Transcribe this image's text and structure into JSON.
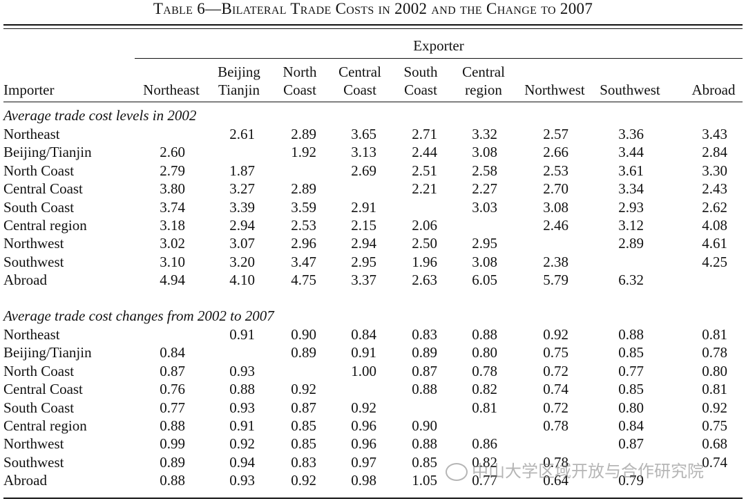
{
  "title": "Table 6—Bilateral Trade Costs in 2002 and the Change to 2007",
  "exporter_label": "Exporter",
  "importer_label": "Importer",
  "columns": [
    [
      "Northeast"
    ],
    [
      "Beijing",
      "Tianjin"
    ],
    [
      "North",
      "Coast"
    ],
    [
      "Central",
      "Coast"
    ],
    [
      "South",
      "Coast"
    ],
    [
      "Central",
      "region"
    ],
    [
      "Northwest"
    ],
    [
      "Southwest"
    ],
    [
      "Abroad"
    ]
  ],
  "sections": [
    {
      "title": "Average trade cost levels in 2002",
      "rows": [
        {
          "label": "Northeast",
          "values": [
            "",
            "2.61",
            "2.89",
            "3.65",
            "2.71",
            "3.32",
            "2.57",
            "3.36",
            "3.43"
          ]
        },
        {
          "label": "Beijing/Tianjin",
          "values": [
            "2.60",
            "",
            "1.92",
            "3.13",
            "2.44",
            "3.08",
            "2.66",
            "3.44",
            "2.84"
          ]
        },
        {
          "label": "North Coast",
          "values": [
            "2.79",
            "1.87",
            "",
            "2.69",
            "2.51",
            "2.58",
            "2.53",
            "3.61",
            "3.30"
          ]
        },
        {
          "label": "Central Coast",
          "values": [
            "3.80",
            "3.27",
            "2.89",
            "",
            "2.21",
            "2.27",
            "2.70",
            "3.34",
            "2.43"
          ]
        },
        {
          "label": "South Coast",
          "values": [
            "3.74",
            "3.39",
            "3.59",
            "2.91",
            "",
            "3.03",
            "3.08",
            "2.93",
            "2.62"
          ]
        },
        {
          "label": "Central region",
          "values": [
            "3.18",
            "2.94",
            "2.53",
            "2.15",
            "2.06",
            "",
            "2.46",
            "3.12",
            "4.08"
          ]
        },
        {
          "label": "Northwest",
          "values": [
            "3.02",
            "3.07",
            "2.96",
            "2.94",
            "2.50",
            "2.95",
            "",
            "2.89",
            "4.61"
          ]
        },
        {
          "label": "Southwest",
          "values": [
            "3.10",
            "3.20",
            "3.47",
            "2.95",
            "1.96",
            "3.08",
            "2.38",
            "",
            "4.25"
          ]
        },
        {
          "label": "Abroad",
          "values": [
            "4.94",
            "4.10",
            "4.75",
            "3.37",
            "2.63",
            "6.05",
            "5.79",
            "6.32",
            ""
          ]
        }
      ]
    },
    {
      "title": "Average trade cost changes from 2002 to 2007",
      "rows": [
        {
          "label": "Northeast",
          "values": [
            "",
            "0.91",
            "0.90",
            "0.84",
            "0.83",
            "0.88",
            "0.92",
            "0.88",
            "0.81"
          ]
        },
        {
          "label": "Beijing/Tianjin",
          "values": [
            "0.84",
            "",
            "0.89",
            "0.91",
            "0.89",
            "0.80",
            "0.75",
            "0.85",
            "0.78"
          ]
        },
        {
          "label": "North Coast",
          "values": [
            "0.87",
            "0.93",
            "",
            "1.00",
            "0.87",
            "0.78",
            "0.72",
            "0.77",
            "0.80"
          ]
        },
        {
          "label": "Central Coast",
          "values": [
            "0.76",
            "0.88",
            "0.92",
            "",
            "0.88",
            "0.82",
            "0.74",
            "0.85",
            "0.81"
          ]
        },
        {
          "label": "South Coast",
          "values": [
            "0.77",
            "0.93",
            "0.87",
            "0.92",
            "",
            "0.81",
            "0.72",
            "0.80",
            "0.92"
          ]
        },
        {
          "label": "Central region",
          "values": [
            "0.88",
            "0.91",
            "0.85",
            "0.96",
            "0.90",
            "",
            "0.78",
            "0.84",
            "0.75"
          ]
        },
        {
          "label": "Northwest",
          "values": [
            "0.99",
            "0.92",
            "0.85",
            "0.96",
            "0.88",
            "0.86",
            "",
            "0.87",
            "0.68"
          ]
        },
        {
          "label": "Southwest",
          "values": [
            "0.89",
            "0.94",
            "0.83",
            "0.97",
            "0.85",
            "0.82",
            "0.78",
            "",
            "0.74"
          ]
        },
        {
          "label": "Abroad",
          "values": [
            "0.88",
            "0.93",
            "0.92",
            "0.98",
            "1.05",
            "0.77",
            "0.64",
            "0.79",
            ""
          ]
        }
      ]
    }
  ],
  "watermark": "中山大学区域开放与合作研究院"
}
